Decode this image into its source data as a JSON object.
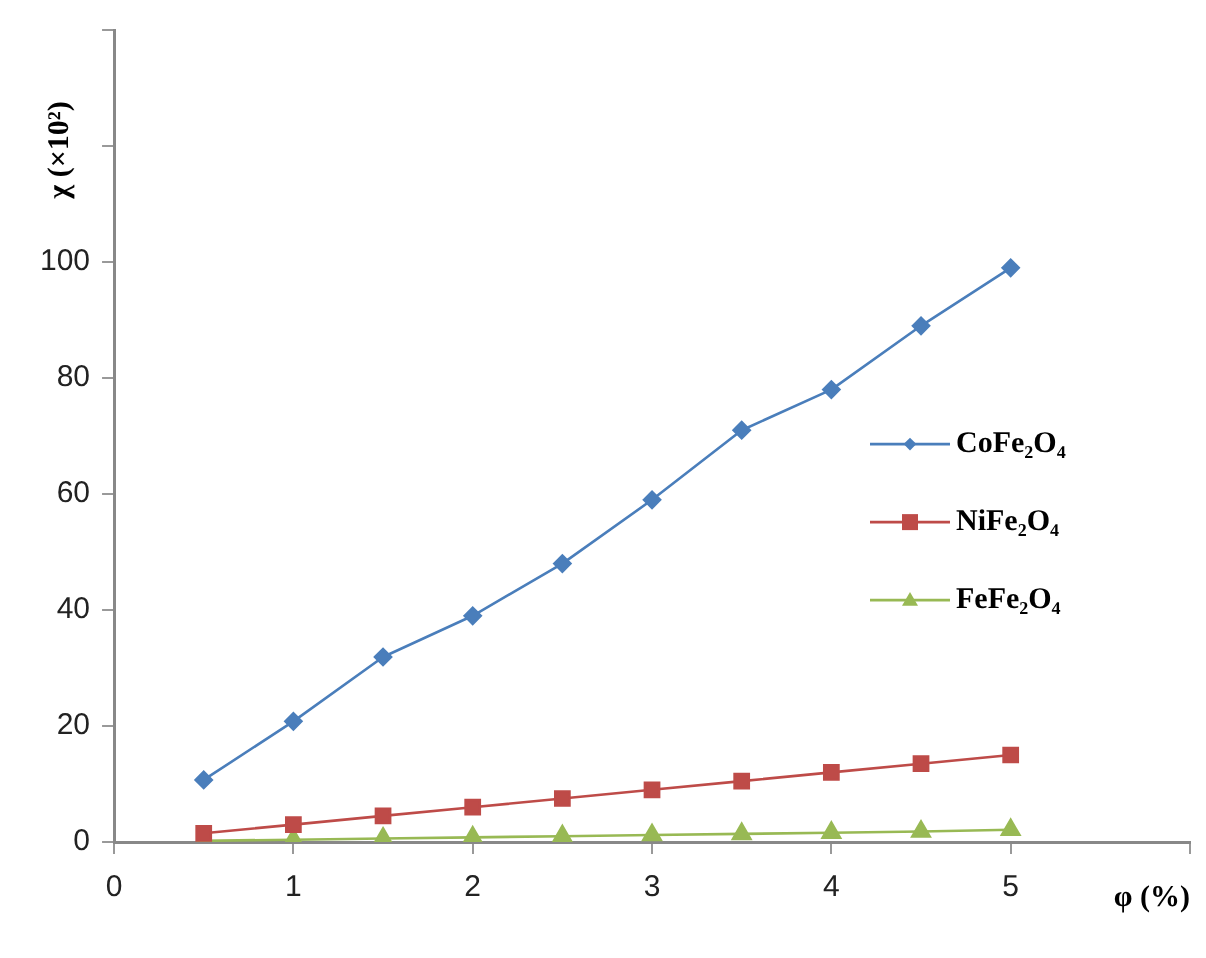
{
  "chart_data": {
    "type": "line",
    "ylabel": "χ (×10²)",
    "xlabel": "φ (%)",
    "x": [
      0.5,
      1,
      1.5,
      2,
      2.5,
      3,
      3.5,
      4,
      4.5,
      5
    ],
    "xlim": [
      0,
      6
    ],
    "xticks": [
      0,
      1,
      2,
      3,
      4,
      5,
      {
        "value": 6,
        "label": null
      }
    ],
    "ylim": [
      0,
      140
    ],
    "yticks": [
      0,
      20,
      40,
      60,
      80,
      100,
      {
        "value": 120,
        "label": null
      },
      {
        "value": 140,
        "label": null
      }
    ],
    "grid": false,
    "legend": "right",
    "series": [
      {
        "name": "CoFe₂O₄",
        "color": "#4a7ebb",
        "marker": "diamond",
        "values": [
          10.7,
          20.8,
          31.9,
          39,
          48,
          59,
          71,
          78,
          89,
          99
        ]
      },
      {
        "name": "NiFe₂O₄",
        "color": "#be4b48",
        "marker": "square",
        "values": [
          1.5,
          3,
          4.5,
          6,
          7.5,
          9,
          10.5,
          12,
          13.5,
          15
        ]
      },
      {
        "name": "FeFe₂O₄",
        "color": "#98b954",
        "marker": "triangle",
        "values": [
          0.2,
          0.4,
          0.6,
          0.8,
          1,
          1.2,
          1.4,
          1.6,
          1.8,
          2.1
        ]
      }
    ]
  }
}
